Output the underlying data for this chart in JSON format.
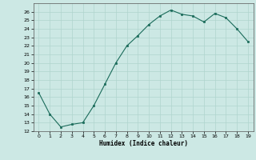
{
  "x": [
    0,
    1,
    2,
    3,
    4,
    5,
    6,
    7,
    8,
    9,
    10,
    11,
    12,
    13,
    14,
    15,
    16,
    17,
    18,
    19
  ],
  "y": [
    16.5,
    14.0,
    12.5,
    12.8,
    13.0,
    15.0,
    17.5,
    20.0,
    22.0,
    23.2,
    24.5,
    25.5,
    26.2,
    25.7,
    25.5,
    24.8,
    25.8,
    25.3,
    24.0,
    22.5
  ],
  "xlabel": "Humidex (Indice chaleur)",
  "xlim": [
    -0.5,
    19.5
  ],
  "ylim": [
    12,
    27
  ],
  "yticks": [
    12,
    13,
    14,
    15,
    16,
    17,
    18,
    19,
    20,
    21,
    22,
    23,
    24,
    25,
    26
  ],
  "xticks": [
    0,
    1,
    2,
    3,
    4,
    5,
    6,
    7,
    8,
    9,
    10,
    11,
    12,
    13,
    14,
    15,
    16,
    17,
    18,
    19
  ],
  "line_color": "#1a6b5a",
  "marker_color": "#1a6b5a",
  "bg_color": "#cce8e4",
  "grid_major_color": "#b0d4ce",
  "grid_minor_color": "#d8eeea",
  "fig_bg": "#cce8e4"
}
